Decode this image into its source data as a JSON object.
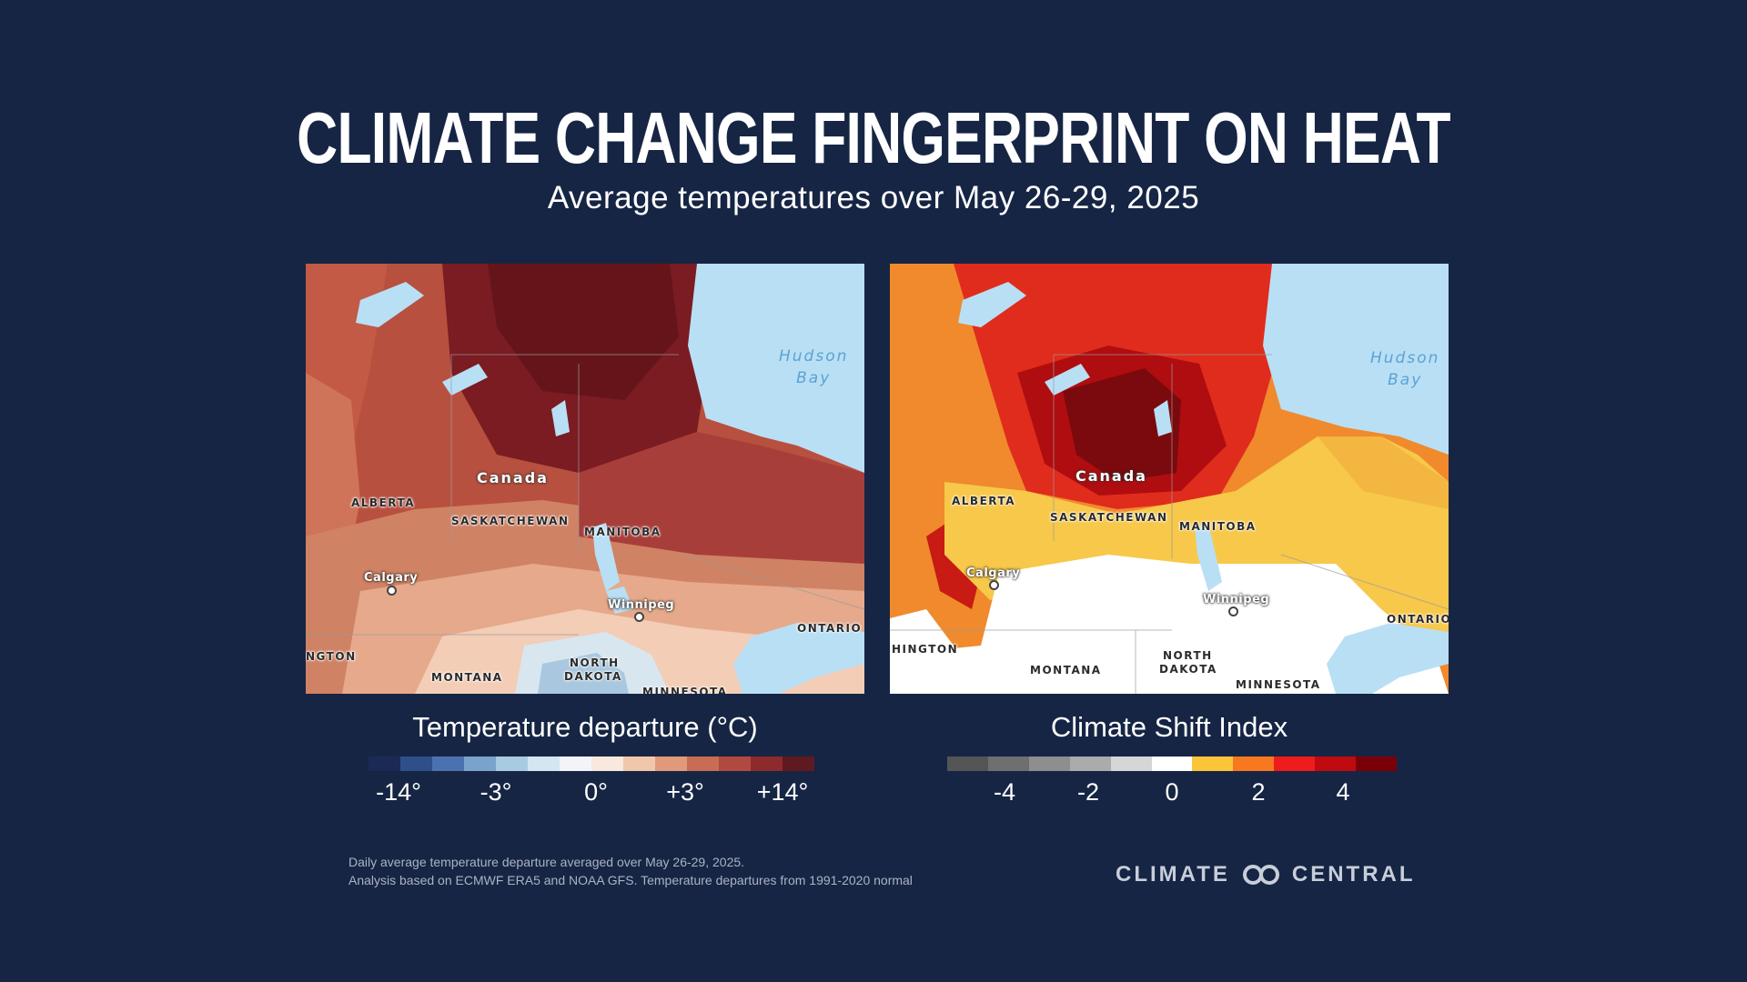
{
  "header": {
    "title": "CLIMATE CHANGE FINGERPRINT ON HEAT",
    "subtitle": "Average temperatures over May 26-29, 2025"
  },
  "maps": {
    "left": {
      "labels": {
        "canada": "Canada",
        "alberta": "ALBERTA",
        "saskatchewan": "SASKATCHEWAN",
        "manitoba": "MANITOBA",
        "ontario": "ONTARIO",
        "montana": "MONTANA",
        "north": "NORTH",
        "dakota": "DAKOTA",
        "minnesota": "MINNESOTA",
        "washington": "NGTON",
        "calgary": "Calgary",
        "winnipeg": "Winnipeg",
        "hudson": "Hudson",
        "bay": "Bay"
      }
    },
    "right": {
      "labels": {
        "canada": "Canada",
        "alberta": "ALBERTA",
        "saskatchewan": "SASKATCHEWAN",
        "manitoba": "MANITOBA",
        "ontario": "ONTARIO",
        "montana": "MONTANA",
        "north": "NORTH",
        "dakota": "DAKOTA",
        "minnesota": "MINNESOTA",
        "washington": "HINGTON",
        "calgary": "Calgary",
        "winnipeg": "Winnipeg",
        "hudson": "Hudson",
        "bay": "Bay"
      }
    }
  },
  "legends": {
    "temperature": {
      "title": "Temperature departure (°C)",
      "colors": [
        "#1b2a55",
        "#2f4f8a",
        "#4a72b0",
        "#7aa3cc",
        "#a9cbe2",
        "#d3e6f1",
        "#f2f4f7",
        "#f9e8dd",
        "#f1c7ac",
        "#e09a7a",
        "#c96c55",
        "#b04a40",
        "#8c2a2c",
        "#5e1a1f"
      ],
      "ticks": [
        "-14°",
        "-3°",
        "0°",
        "+3°",
        "+14°"
      ]
    },
    "csi": {
      "title": "Climate Shift Index",
      "colors": [
        "#555555",
        "#6f6f6f",
        "#8e8e8e",
        "#ababab",
        "#d6d6d6",
        "#ffffff",
        "#fbc53a",
        "#f7781f",
        "#ee1c1c",
        "#bf0b10",
        "#7a0008"
      ],
      "ticks": [
        "-4",
        "-2",
        "0",
        "2",
        "4"
      ]
    }
  },
  "footnote": {
    "line1": "Daily average temperature departure averaged over May 26-29, 2025.",
    "line2": "Analysis based on ECMWF ERA5 and NOAA GFS. Temperature departures from 1991-2020 normal"
  },
  "brand": {
    "left": "CLIMATE",
    "right": "CENTRAL"
  }
}
